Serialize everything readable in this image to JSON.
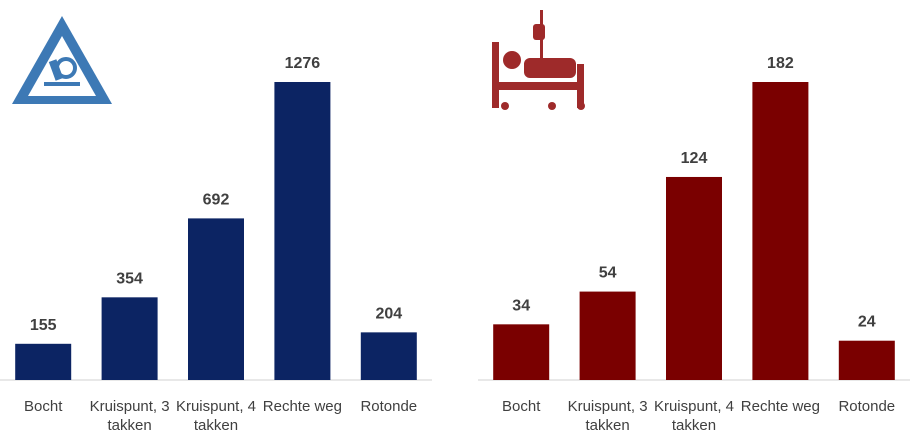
{
  "chart_data": [
    {
      "type": "bar",
      "categories": [
        "Bocht",
        "Kruispunt, 3 takken",
        "Kruispunt, 4 takken",
        "Rechte weg",
        "Rotonde"
      ],
      "values": [
        155,
        354,
        692,
        1276,
        204
      ],
      "color": "#0c2463"
    },
    {
      "type": "bar",
      "categories": [
        "Bocht",
        "Kruispunt, 3 takken",
        "Kruispunt, 4 takken",
        "Rechte weg",
        "Rotonde"
      ],
      "values": [
        34,
        54,
        124,
        182,
        24
      ],
      "color": "#7a0000"
    }
  ]
}
